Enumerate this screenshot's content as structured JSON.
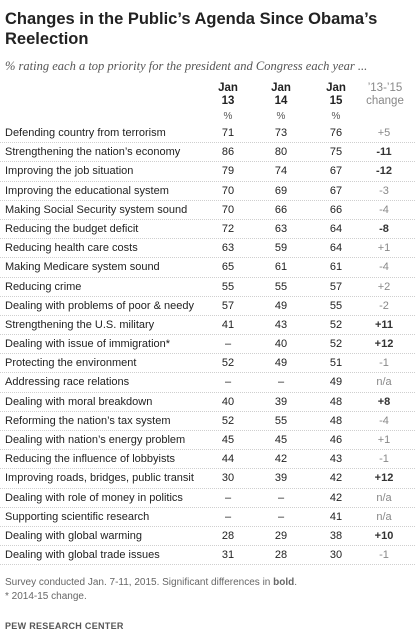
{
  "title": "Changes in the Public’s Agenda Since Obama’s Reelection",
  "subtitle": "% rating each a top priority for the president and Congress each year ...",
  "columns": {
    "jan13": "Jan 13",
    "jan14": "Jan 14",
    "jan15": "Jan 15",
    "change": "’13-’15 change",
    "pct": "%"
  },
  "chart_data": {
    "type": "table",
    "columns": [
      "Jan 13",
      "Jan 14",
      "Jan 15",
      "’13-’15 change"
    ],
    "rows": [
      {
        "label": "Defending country from terrorism",
        "jan13": "71",
        "jan14": "73",
        "jan15": "76",
        "change": "+5",
        "significant": false
      },
      {
        "label": "Strengthening the nation’s economy",
        "jan13": "86",
        "jan14": "80",
        "jan15": "75",
        "change": "-11",
        "significant": true
      },
      {
        "label": "Improving the job situation",
        "jan13": "79",
        "jan14": "74",
        "jan15": "67",
        "change": "-12",
        "significant": true
      },
      {
        "label": "Improving the educational system",
        "jan13": "70",
        "jan14": "69",
        "jan15": "67",
        "change": "-3",
        "significant": false
      },
      {
        "label": "Making Social Security system sound",
        "jan13": "70",
        "jan14": "66",
        "jan15": "66",
        "change": "-4",
        "significant": false
      },
      {
        "label": "Reducing the budget deficit",
        "jan13": "72",
        "jan14": "63",
        "jan15": "64",
        "change": "-8",
        "significant": true
      },
      {
        "label": "Reducing health care costs",
        "jan13": "63",
        "jan14": "59",
        "jan15": "64",
        "change": "+1",
        "significant": false
      },
      {
        "label": "Making Medicare system sound",
        "jan13": "65",
        "jan14": "61",
        "jan15": "61",
        "change": "-4",
        "significant": false
      },
      {
        "label": "Reducing crime",
        "jan13": "55",
        "jan14": "55",
        "jan15": "57",
        "change": "+2",
        "significant": false
      },
      {
        "label": "Dealing with problems of poor & needy",
        "jan13": "57",
        "jan14": "49",
        "jan15": "55",
        "change": "-2",
        "significant": false
      },
      {
        "label": "Strengthening the U.S. military",
        "jan13": "41",
        "jan14": "43",
        "jan15": "52",
        "change": "+11",
        "significant": true
      },
      {
        "label": "Dealing with issue of immigration*",
        "jan13": "–",
        "jan14": "40",
        "jan15": "52",
        "change": "+12",
        "significant": true
      },
      {
        "label": "Protecting the environment",
        "jan13": "52",
        "jan14": "49",
        "jan15": "51",
        "change": "-1",
        "significant": false
      },
      {
        "label": "Addressing race relations",
        "jan13": "–",
        "jan14": "–",
        "jan15": "49",
        "change": "n/a",
        "significant": false
      },
      {
        "label": "Dealing with moral breakdown",
        "jan13": "40",
        "jan14": "39",
        "jan15": "48",
        "change": "+8",
        "significant": true
      },
      {
        "label": "Reforming the nation’s tax system",
        "jan13": "52",
        "jan14": "55",
        "jan15": "48",
        "change": "-4",
        "significant": false
      },
      {
        "label": "Dealing with nation’s energy problem",
        "jan13": "45",
        "jan14": "45",
        "jan15": "46",
        "change": "+1",
        "significant": false
      },
      {
        "label": "Reducing the influence of lobbyists",
        "jan13": "44",
        "jan14": "42",
        "jan15": "43",
        "change": "-1",
        "significant": false
      },
      {
        "label": "Improving roads, bridges, public transit",
        "jan13": "30",
        "jan14": "39",
        "jan15": "42",
        "change": "+12",
        "significant": true
      },
      {
        "label": "Dealing with role of money in politics",
        "jan13": "–",
        "jan14": "–",
        "jan15": "42",
        "change": "n/a",
        "significant": false
      },
      {
        "label": "Supporting scientific research",
        "jan13": "–",
        "jan14": "–",
        "jan15": "41",
        "change": "n/a",
        "significant": false
      },
      {
        "label": "Dealing with global warming",
        "jan13": "28",
        "jan14": "29",
        "jan15": "38",
        "change": "+10",
        "significant": true
      },
      {
        "label": "Dealing with global trade issues",
        "jan13": "31",
        "jan14": "28",
        "jan15": "30",
        "change": "-1",
        "significant": false
      }
    ]
  },
  "footer": {
    "note1_prefix": "Survey conducted Jan. 7-11, 2015. Significant differences in ",
    "note1_bold": "bold",
    "note1_suffix": ".",
    "note2": "* 2014-15 change.",
    "org": "PEW RESEARCH CENTER"
  },
  "colors": {
    "text": "#222222",
    "muted": "#888888",
    "rule": "#cfcfcf"
  }
}
